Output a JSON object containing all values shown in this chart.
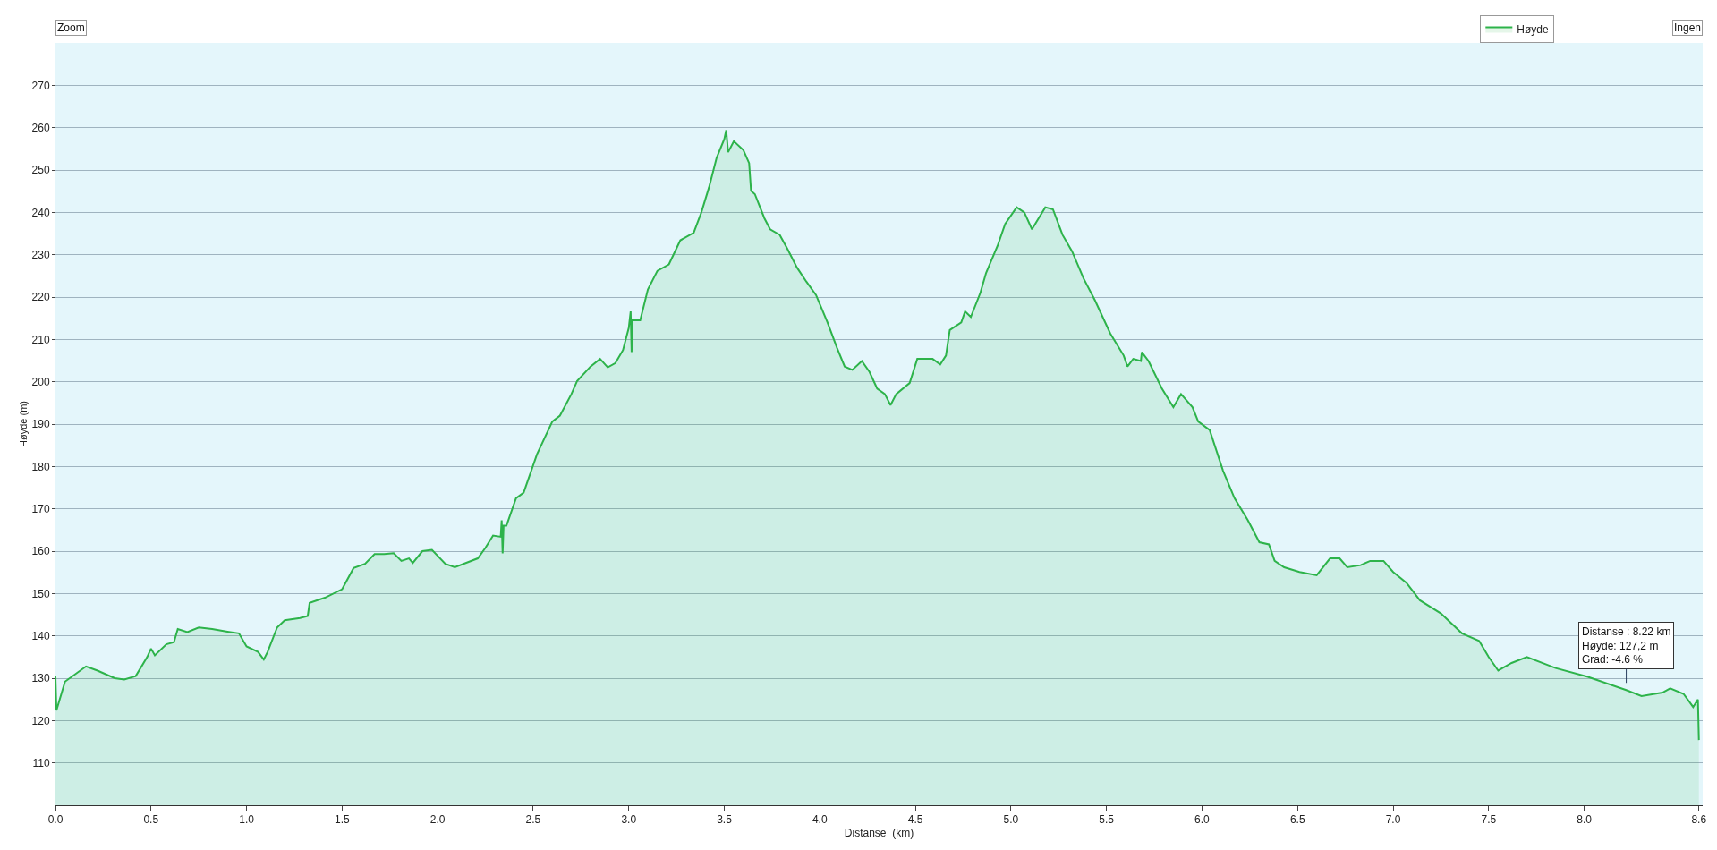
{
  "chart_data": {
    "type": "area",
    "xlabel": "Distanse  (km)",
    "ylabel": "Høyde (m)",
    "x": [
      0.0,
      0.005,
      0.05,
      0.16,
      0.22,
      0.31,
      0.36,
      0.42,
      0.48,
      0.5,
      0.52,
      0.58,
      0.62,
      0.64,
      0.69,
      0.75,
      0.82,
      0.9,
      0.96,
      1.0,
      1.06,
      1.09,
      1.11,
      1.16,
      1.2,
      1.28,
      1.32,
      1.33,
      1.41,
      1.5,
      1.56,
      1.62,
      1.67,
      1.72,
      1.77,
      1.81,
      1.85,
      1.87,
      1.92,
      1.97,
      2.04,
      2.09,
      2.21,
      2.25,
      2.29,
      2.33,
      2.335,
      2.34,
      2.345,
      2.36,
      2.41,
      2.45,
      2.52,
      2.6,
      2.64,
      2.7,
      2.73,
      2.8,
      2.85,
      2.89,
      2.93,
      2.97,
      3.0,
      3.01,
      3.015,
      3.02,
      3.06,
      3.1,
      3.15,
      3.21,
      3.27,
      3.34,
      3.38,
      3.42,
      3.46,
      3.5,
      3.51,
      3.52,
      3.55,
      3.6,
      3.63,
      3.64,
      3.66,
      3.71,
      3.74,
      3.79,
      3.83,
      3.88,
      3.93,
      3.98,
      4.04,
      4.09,
      4.13,
      4.17,
      4.22,
      4.26,
      4.3,
      4.34,
      4.37,
      4.4,
      4.47,
      4.51,
      4.59,
      4.63,
      4.66,
      4.68,
      4.74,
      4.76,
      4.79,
      4.84,
      4.87,
      4.93,
      4.97,
      5.03,
      5.07,
      5.11,
      5.18,
      5.22,
      5.27,
      5.32,
      5.38,
      5.44,
      5.52,
      5.59,
      5.61,
      5.64,
      5.68,
      5.685,
      5.72,
      5.79,
      5.85,
      5.89,
      5.95,
      5.98,
      6.04,
      6.11,
      6.17,
      6.24,
      6.3,
      6.35,
      6.38,
      6.43,
      6.51,
      6.6,
      6.67,
      6.72,
      6.76,
      6.83,
      6.88,
      6.95,
      7.0,
      7.07,
      7.14,
      7.25,
      7.36,
      7.45,
      7.5,
      7.55,
      7.62,
      7.7,
      7.85,
      8.02,
      8.22,
      8.3,
      8.41,
      8.45,
      8.52,
      8.57,
      8.595,
      8.6
    ],
    "series": [
      {
        "name": "Høyde",
        "color": "#2db34a",
        "values": [
          130.5,
          122.4,
          129.2,
          132.8,
          131.8,
          130,
          129.7,
          130.5,
          135,
          137,
          135.4,
          138,
          138.5,
          141.6,
          140.9,
          142,
          141.6,
          141,
          140.6,
          137.5,
          136.2,
          134.4,
          136.2,
          142,
          143.7,
          144.2,
          144.7,
          147.8,
          149,
          151,
          156,
          157,
          159.3,
          159.3,
          159.5,
          157.7,
          158.3,
          157.2,
          160,
          160.3,
          157,
          156.2,
          158.3,
          160.8,
          163.7,
          163.4,
          167.3,
          159.5,
          166,
          166,
          172.5,
          173.8,
          182.9,
          190.6,
          192,
          197.1,
          200.2,
          203.6,
          205.4,
          203.4,
          204.4,
          207.5,
          212.7,
          216.6,
          207,
          214.5,
          214.5,
          221.8,
          226.2,
          227.7,
          233.4,
          235.2,
          240,
          245.9,
          252.9,
          257.3,
          259.4,
          254.2,
          256.8,
          254.7,
          251.6,
          245.1,
          244.3,
          238.6,
          236,
          234.7,
          231.4,
          227,
          223.6,
          220.5,
          214,
          208,
          203.6,
          202.8,
          204.9,
          202.3,
          198.4,
          197.1,
          194.5,
          197.1,
          199.7,
          205.4,
          205.4,
          204.1,
          206.2,
          212.2,
          214,
          216.6,
          215.3,
          221,
          225.7,
          232.1,
          237.3,
          241.2,
          240,
          236,
          241.2,
          240.7,
          234.7,
          230.8,
          224.4,
          219.2,
          211.4,
          206.2,
          203.6,
          205.4,
          204.9,
          207,
          204.9,
          198.4,
          194,
          197.1,
          194,
          190.6,
          188.6,
          179,
          172.5,
          167.3,
          162.1,
          161.6,
          157.7,
          156.2,
          155.1,
          154.3,
          158.3,
          158.3,
          156.2,
          156.7,
          157.7,
          157.7,
          155.1,
          152.5,
          148.4,
          145.3,
          140.6,
          138.8,
          135,
          131.8,
          133.6,
          135,
          132.4,
          130.3,
          127.2,
          125.8,
          126.6,
          127.6,
          126.3,
          123.2,
          125,
          115.4
        ]
      }
    ],
    "xlim": [
      0,
      8.62
    ],
    "ylim": [
      100,
      280
    ],
    "xticks": [
      {
        "value": 0,
        "label": "0.0"
      },
      0.5,
      {
        "value": 1,
        "label": "1.0"
      },
      1.5,
      {
        "value": 2,
        "label": "2.0"
      },
      2.5,
      {
        "value": 3,
        "label": "3.0"
      },
      3.5,
      {
        "value": 4,
        "label": "4.0"
      },
      4.5,
      {
        "value": 5,
        "label": "5.0"
      },
      5.5,
      {
        "value": 6,
        "label": "6.0"
      },
      6.5,
      {
        "value": 7,
        "label": "7.0"
      },
      7.5,
      {
        "value": 8,
        "label": "8.0"
      },
      8.6
    ],
    "yticks": [
      110,
      120,
      130,
      140,
      150,
      160,
      170,
      180,
      190,
      200,
      210,
      220,
      230,
      240,
      250,
      260,
      270
    ],
    "grid": "y",
    "legend": "top right",
    "annotations": [
      "Zoom",
      "Ingen",
      {
        "text": "Distanse : 8.22 km\nHøyde: 127,2 m\nGrad: -4.6 %",
        "x": 8.22,
        "y": 127.2
      }
    ]
  }
}
